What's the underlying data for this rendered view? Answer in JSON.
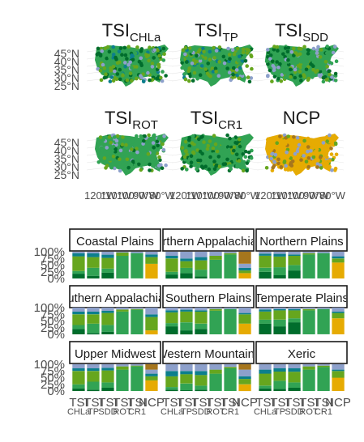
{
  "maps": [
    {
      "label": "TSI",
      "sub": "CHLa"
    },
    {
      "label": "TSI",
      "sub": "TP"
    },
    {
      "label": "TSI",
      "sub": "SDD"
    },
    {
      "label": "TSI",
      "sub": "ROT"
    },
    {
      "label": "TSI",
      "sub": "CR1"
    },
    {
      "label": "NCP",
      "sub": ""
    }
  ],
  "lat_labels": [
    "45°N",
    "40°N",
    "35°N",
    "30°N",
    "25°N"
  ],
  "lon_labels": [
    "120°W",
    "110°W",
    "100°W",
    "90°W",
    "80°W"
  ],
  "chart_data": {
    "type": "bar",
    "stacked": true,
    "normalized": true,
    "categories": [
      {
        "main": "TSI",
        "sub": "CHLa"
      },
      {
        "main": "TSI",
        "sub": "TP"
      },
      {
        "main": "TSI",
        "sub": "SDD"
      },
      {
        "main": "TSI",
        "sub": "ROT"
      },
      {
        "main": "TSI",
        "sub": "CR1"
      },
      {
        "main": "NCP",
        "sub": ""
      }
    ],
    "ylabels": [
      "0%",
      "25%",
      "50%",
      "75%",
      "100%"
    ],
    "ylim": [
      0,
      100
    ],
    "layer_colors": [
      "#E6AB02",
      "#006D2C",
      "#31A354",
      "#66A61E",
      "#0C7F8C",
      "#8DA0CB",
      "#A6761D"
    ],
    "panels": [
      {
        "name": "Coastal Plains",
        "values": [
          [
            0,
            18,
            10,
            55,
            12,
            5,
            0
          ],
          [
            0,
            10,
            30,
            40,
            14,
            6,
            0
          ],
          [
            0,
            22,
            15,
            40,
            12,
            11,
            0
          ],
          [
            0,
            0,
            85,
            12,
            0,
            3,
            0
          ],
          [
            0,
            0,
            95,
            0,
            0,
            5,
            0
          ],
          [
            55,
            0,
            0,
            25,
            10,
            10,
            0
          ]
        ]
      },
      {
        "name": "Northern Appalachians",
        "values": [
          [
            0,
            15,
            10,
            50,
            10,
            15,
            0
          ],
          [
            0,
            20,
            20,
            25,
            10,
            25,
            0
          ],
          [
            0,
            8,
            25,
            35,
            12,
            20,
            0
          ],
          [
            0,
            0,
            70,
            15,
            0,
            15,
            0
          ],
          [
            0,
            0,
            90,
            5,
            0,
            5,
            0
          ],
          [
            20,
            0,
            0,
            10,
            10,
            15,
            45
          ]
        ]
      },
      {
        "name": "Northern Plains",
        "values": [
          [
            0,
            25,
            15,
            45,
            8,
            7,
            0
          ],
          [
            0,
            12,
            30,
            40,
            10,
            8,
            0
          ],
          [
            0,
            30,
            20,
            35,
            5,
            10,
            0
          ],
          [
            0,
            0,
            90,
            5,
            0,
            5,
            0
          ],
          [
            0,
            0,
            95,
            0,
            0,
            5,
            0
          ],
          [
            60,
            0,
            0,
            15,
            8,
            17,
            0
          ]
        ]
      },
      {
        "name": "Southern Appalachians",
        "values": [
          [
            0,
            20,
            15,
            40,
            10,
            15,
            0
          ],
          [
            0,
            5,
            35,
            35,
            10,
            15,
            0
          ],
          [
            0,
            10,
            25,
            45,
            8,
            12,
            0
          ],
          [
            0,
            0,
            85,
            8,
            0,
            7,
            0
          ],
          [
            0,
            0,
            92,
            3,
            0,
            5,
            0
          ],
          [
            15,
            0,
            0,
            50,
            10,
            25,
            0
          ]
        ]
      },
      {
        "name": "Southern Plains",
        "values": [
          [
            0,
            30,
            12,
            40,
            8,
            10,
            0
          ],
          [
            0,
            15,
            30,
            40,
            7,
            8,
            0
          ],
          [
            0,
            20,
            20,
            45,
            5,
            10,
            0
          ],
          [
            0,
            0,
            88,
            7,
            0,
            5,
            0
          ],
          [
            0,
            0,
            95,
            0,
            0,
            5,
            0
          ],
          [
            40,
            0,
            0,
            35,
            5,
            20,
            0
          ]
        ]
      },
      {
        "name": "Temperate Plains",
        "values": [
          [
            0,
            40,
            15,
            30,
            8,
            7,
            0
          ],
          [
            0,
            30,
            25,
            35,
            5,
            5,
            0
          ],
          [
            0,
            45,
            15,
            30,
            5,
            5,
            0
          ],
          [
            0,
            0,
            90,
            5,
            0,
            5,
            0
          ],
          [
            0,
            0,
            95,
            0,
            0,
            5,
            0
          ],
          [
            60,
            0,
            0,
            20,
            5,
            15,
            0
          ]
        ]
      },
      {
        "name": "Upper Midwest",
        "values": [
          [
            0,
            10,
            15,
            50,
            10,
            15,
            0
          ],
          [
            0,
            5,
            30,
            40,
            10,
            15,
            0
          ],
          [
            0,
            12,
            20,
            45,
            10,
            13,
            0
          ],
          [
            0,
            0,
            80,
            12,
            0,
            8,
            0
          ],
          [
            0,
            0,
            92,
            3,
            0,
            5,
            0
          ],
          [
            40,
            0,
            0,
            15,
            10,
            15,
            20
          ]
        ]
      },
      {
        "name": "Western Mountains",
        "values": [
          [
            0,
            5,
            10,
            40,
            20,
            25,
            0
          ],
          [
            0,
            3,
            25,
            35,
            12,
            25,
            0
          ],
          [
            0,
            5,
            15,
            40,
            15,
            25,
            0
          ],
          [
            0,
            0,
            65,
            15,
            0,
            20,
            0
          ],
          [
            0,
            0,
            85,
            5,
            0,
            10,
            0
          ],
          [
            25,
            0,
            0,
            20,
            10,
            25,
            20
          ]
        ]
      },
      {
        "name": "Xeric",
        "values": [
          [
            0,
            10,
            10,
            45,
            15,
            20,
            0
          ],
          [
            0,
            8,
            30,
            35,
            12,
            15,
            0
          ],
          [
            0,
            12,
            20,
            40,
            13,
            15,
            0
          ],
          [
            0,
            0,
            80,
            12,
            0,
            8,
            0
          ],
          [
            0,
            0,
            90,
            5,
            0,
            5,
            0
          ],
          [
            50,
            0,
            0,
            25,
            5,
            20,
            0
          ]
        ]
      }
    ]
  }
}
